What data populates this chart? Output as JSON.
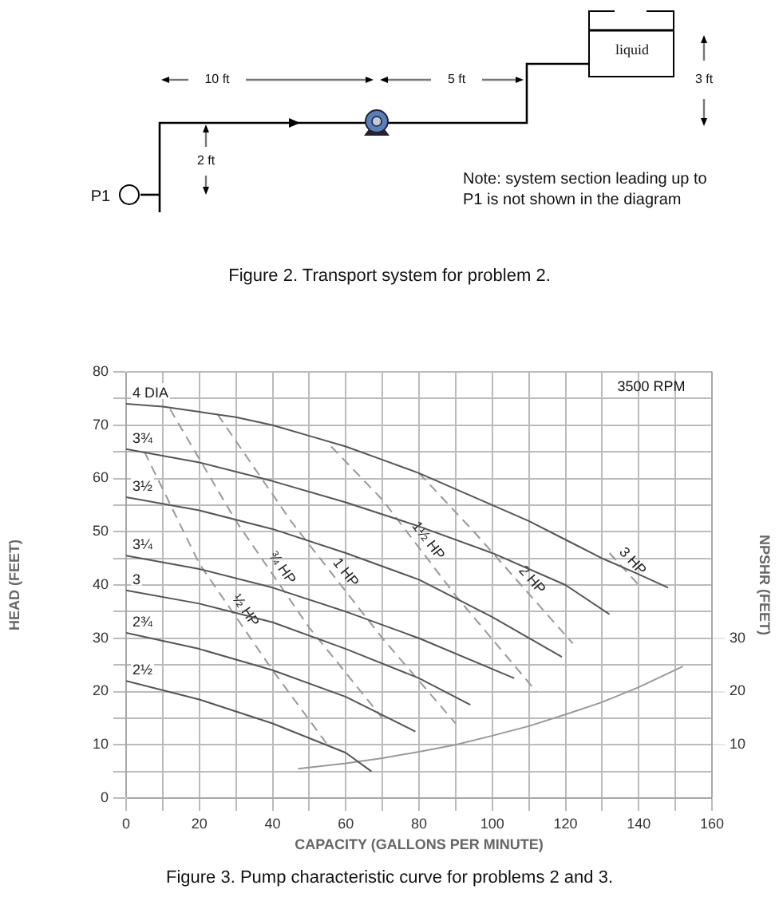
{
  "chart_data": {
    "type": "line",
    "xlabel": "CAPACITY (GALLONS PER MINUTE)",
    "ylabel": "HEAD (FEET)",
    "y2label": "NPSHR (FEET)",
    "xlim": [
      0,
      160
    ],
    "xticks": [
      0,
      {
        "value": 10,
        "label": null
      },
      20,
      {
        "value": 30,
        "label": null
      },
      40,
      {
        "value": 50,
        "label": null
      },
      60,
      {
        "value": 70,
        "label": null
      },
      80,
      {
        "value": 90,
        "label": null
      },
      100,
      {
        "value": 110,
        "label": null
      },
      120,
      {
        "value": 130,
        "label": null
      },
      140,
      {
        "value": 150,
        "label": null
      },
      160
    ],
    "ylim": [
      0,
      80
    ],
    "yticks": [
      0,
      {
        "value": 5,
        "label": null
      },
      10,
      {
        "value": 15,
        "label": null
      },
      20,
      {
        "value": 25,
        "label": null
      },
      30,
      {
        "value": 35,
        "label": null
      },
      40,
      {
        "value": 45,
        "label": null
      },
      50,
      {
        "value": 55,
        "label": null
      },
      60,
      {
        "value": 65,
        "label": null
      },
      70,
      {
        "value": 75,
        "label": null
      },
      80
    ],
    "y2lim": [
      0,
      80
    ],
    "y2ticks": [
      10,
      20,
      30
    ],
    "grid": true,
    "series": [
      {
        "name": "4 DIA",
        "color": "#555555",
        "x": [
          0,
          10,
          20,
          30,
          40,
          50,
          60,
          70,
          80,
          90,
          100,
          110,
          120,
          130,
          140,
          148
        ],
        "values": [
          74,
          73.5,
          72.5,
          71.5,
          70,
          68,
          66,
          63.5,
          61,
          58,
          55,
          52,
          48.5,
          45,
          42,
          39.5
        ]
      },
      {
        "name": "3¾",
        "color": "#555555",
        "x": [
          0,
          20,
          40,
          60,
          80,
          100,
          120,
          132
        ],
        "values": [
          65.5,
          63,
          59.5,
          55.5,
          51,
          46,
          40,
          34.5
        ]
      },
      {
        "name": "3½",
        "color": "#555555",
        "x": [
          0,
          20,
          40,
          60,
          80,
          100,
          119
        ],
        "values": [
          56.5,
          54,
          50.5,
          46,
          41,
          34,
          26.5
        ]
      },
      {
        "name": "3¼",
        "color": "#555555",
        "x": [
          0,
          20,
          40,
          60,
          80,
          106
        ],
        "values": [
          45.5,
          43,
          39.5,
          35,
          30,
          22.5
        ]
      },
      {
        "name": "3",
        "color": "#555555",
        "x": [
          0,
          20,
          40,
          60,
          80,
          94
        ],
        "values": [
          39,
          36.5,
          33,
          28,
          22.5,
          17.5
        ]
      },
      {
        "name": "2¾",
        "color": "#555555",
        "x": [
          0,
          20,
          40,
          60,
          79
        ],
        "values": [
          31,
          28,
          24,
          19,
          12.5
        ]
      },
      {
        "name": "2½",
        "color": "#555555",
        "x": [
          0,
          20,
          40,
          60,
          67
        ],
        "values": [
          22,
          18.5,
          14,
          8.5,
          5
        ]
      },
      {
        "name": "½ HP",
        "color": "#999999",
        "line_style": "dashed",
        "x": [
          5,
          20,
          40,
          55
        ],
        "values": [
          65,
          44,
          24,
          10
        ]
      },
      {
        "name": "¾ HP",
        "color": "#999999",
        "line_style": "dashed",
        "x": [
          12,
          30,
          50,
          70
        ],
        "values": [
          73,
          52,
          32,
          15
        ]
      },
      {
        "name": "1 HP",
        "color": "#999999",
        "line_style": "dashed",
        "x": [
          25,
          45,
          70,
          90
        ],
        "values": [
          72,
          52,
          30,
          14
        ]
      },
      {
        "name": "1½ HP",
        "color": "#999999",
        "line_style": "dashed",
        "x": [
          56,
          70,
          90,
          112
        ],
        "values": [
          66,
          56,
          38,
          20
        ]
      },
      {
        "name": "2 HP",
        "color": "#999999",
        "line_style": "dashed",
        "x": [
          80,
          95,
          122
        ],
        "values": [
          61,
          50,
          29
        ]
      },
      {
        "name": "3 HP",
        "color": "#999999",
        "line_style": "dashed",
        "x": [
          132,
          140
        ],
        "values": [
          46,
          40
        ]
      },
      {
        "color": "#999999",
        "axis": "y2",
        "x": [
          47,
          60,
          70,
          80,
          90,
          100,
          110,
          120,
          130,
          140,
          152
        ],
        "values": [
          5.5,
          6.5,
          7.5,
          8.7,
          10,
          11.7,
          13.5,
          15.7,
          18,
          20.8,
          24.7
        ]
      }
    ],
    "annotations": [
      "liquid",
      "10 ft",
      "5 ft",
      "3 ft",
      "2 ft",
      "P1",
      "Note: system section leading up to P1 is not shown in the diagram",
      "Figure 2.  Transport system for problem 2.",
      "3500 RPM",
      "Figure 3.  Pump characteristic curve for problems 2 and 3."
    ]
  }
}
